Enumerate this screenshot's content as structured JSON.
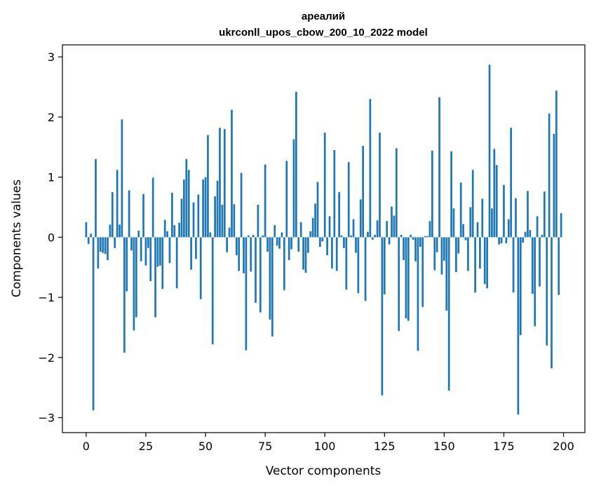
{
  "chart_data": {
    "type": "bar",
    "title": "ареалий",
    "subtitle": "ukrconll_upos_cbow_200_10_2022 model",
    "xlabel": "Vector components",
    "ylabel": "Components values",
    "xlim": [
      -9.95,
      208.95
    ],
    "ylim": [
      -3.25,
      3.2
    ],
    "xticks": [
      0,
      25,
      50,
      75,
      100,
      125,
      150,
      175,
      200
    ],
    "yticks": [
      3,
      2,
      1,
      0,
      -1,
      -2,
      -3
    ],
    "ytick_labels": [
      "3",
      "2",
      "1",
      "0",
      "−1",
      "−2",
      "−3"
    ],
    "grid": false,
    "bar_color": "#1f77b4",
    "x": [
      0,
      1,
      2,
      3,
      4,
      5,
      6,
      7,
      8,
      9,
      10,
      11,
      12,
      13,
      14,
      15,
      16,
      17,
      18,
      19,
      20,
      21,
      22,
      23,
      24,
      25,
      26,
      27,
      28,
      29,
      30,
      31,
      32,
      33,
      34,
      35,
      36,
      37,
      38,
      39,
      40,
      41,
      42,
      43,
      44,
      45,
      46,
      47,
      48,
      49,
      50,
      51,
      52,
      53,
      54,
      55,
      56,
      57,
      58,
      59,
      60,
      61,
      62,
      63,
      64,
      65,
      66,
      67,
      68,
      69,
      70,
      71,
      72,
      73,
      74,
      75,
      76,
      77,
      78,
      79,
      80,
      81,
      82,
      83,
      84,
      85,
      86,
      87,
      88,
      89,
      90,
      91,
      92,
      93,
      94,
      95,
      96,
      97,
      98,
      99,
      100,
      101,
      102,
      103,
      104,
      105,
      106,
      107,
      108,
      109,
      110,
      111,
      112,
      113,
      114,
      115,
      116,
      117,
      118,
      119,
      120,
      121,
      122,
      123,
      124,
      125,
      126,
      127,
      128,
      129,
      130,
      131,
      132,
      133,
      134,
      135,
      136,
      137,
      138,
      139,
      140,
      141,
      142,
      143,
      144,
      145,
      146,
      147,
      148,
      149,
      150,
      151,
      152,
      153,
      154,
      155,
      156,
      157,
      158,
      159,
      160,
      161,
      162,
      163,
      164,
      165,
      166,
      167,
      168,
      169,
      170,
      171,
      172,
      173,
      174,
      175,
      176,
      177,
      178,
      179,
      180,
      181,
      182,
      183,
      184,
      185,
      186,
      187,
      188,
      189,
      190,
      191,
      192,
      193,
      194,
      195,
      196,
      197,
      198,
      199
    ],
    "values": [
      0.25,
      -0.11,
      0.06,
      -2.88,
      1.3,
      -0.52,
      -0.24,
      -0.26,
      -0.28,
      -0.38,
      0.21,
      0.75,
      -0.18,
      1.12,
      0.21,
      1.96,
      -1.92,
      -0.9,
      0.78,
      -0.22,
      -1.55,
      -1.33,
      0.11,
      -0.4,
      0.72,
      -0.47,
      -0.18,
      -0.73,
      0.99,
      -1.33,
      -0.49,
      -0.47,
      -0.86,
      0.29,
      0.1,
      -0.43,
      0.74,
      0.2,
      -0.85,
      0.24,
      0.64,
      0.96,
      1.3,
      1.12,
      -0.54,
      0.58,
      -0.36,
      0.71,
      -1.03,
      0.96,
      1.0,
      1.7,
      0.08,
      -1.78,
      0.68,
      0.94,
      1.82,
      0.54,
      1.8,
      -0.25,
      0.16,
      2.12,
      0.55,
      -0.3,
      -0.56,
      1.07,
      -0.6,
      -1.88,
      0.03,
      -0.57,
      0.04,
      -1.09,
      0.54,
      -1.25,
      0.03,
      1.21,
      -0.24,
      -1.37,
      -1.65,
      0.2,
      -0.14,
      -0.19,
      0.08,
      -0.88,
      1.27,
      -0.38,
      -0.2,
      1.63,
      2.42,
      -0.24,
      0.25,
      -0.54,
      -0.59,
      -0.26,
      0.1,
      0.32,
      0.56,
      0.92,
      -0.16,
      -0.07,
      1.74,
      -0.3,
      0.35,
      -0.52,
      1.45,
      -0.56,
      0.75,
      0.03,
      -0.18,
      -0.87,
      1.25,
      0.03,
      0.3,
      -0.26,
      -0.93,
      0.63,
      1.52,
      -1.06,
      0.09,
      2.3,
      -0.04,
      0.04,
      0.28,
      1.74,
      -2.63,
      -0.95,
      0.27,
      -0.12,
      0.51,
      0.36,
      1.48,
      -1.56,
      0.04,
      -0.38,
      -1.35,
      -1.39,
      0.04,
      -0.04,
      -0.4,
      -1.89,
      -0.16,
      -1.16,
      0.02,
      0.02,
      0.27,
      1.44,
      -0.55,
      -0.25,
      2.33,
      -0.62,
      -0.39,
      -1.22,
      -2.55,
      1.43,
      0.48,
      -0.58,
      -0.27,
      0.91,
      0.22,
      -0.05,
      -0.56,
      0.5,
      1.12,
      -0.92,
      0.25,
      -0.52,
      0.64,
      -0.78,
      -0.85,
      2.87,
      0.48,
      1.47,
      1.2,
      -0.12,
      -0.1,
      0.87,
      -0.1,
      0.3,
      1.82,
      -0.92,
      0.65,
      -2.95,
      -1.63,
      -0.09,
      0.09,
      0.77,
      0.12,
      -0.94,
      -1.48,
      0.35,
      -0.82,
      0.04,
      0.76,
      -1.8,
      2.06,
      -2.18,
      1.72,
      2.44,
      -0.96,
      0.4
    ]
  }
}
